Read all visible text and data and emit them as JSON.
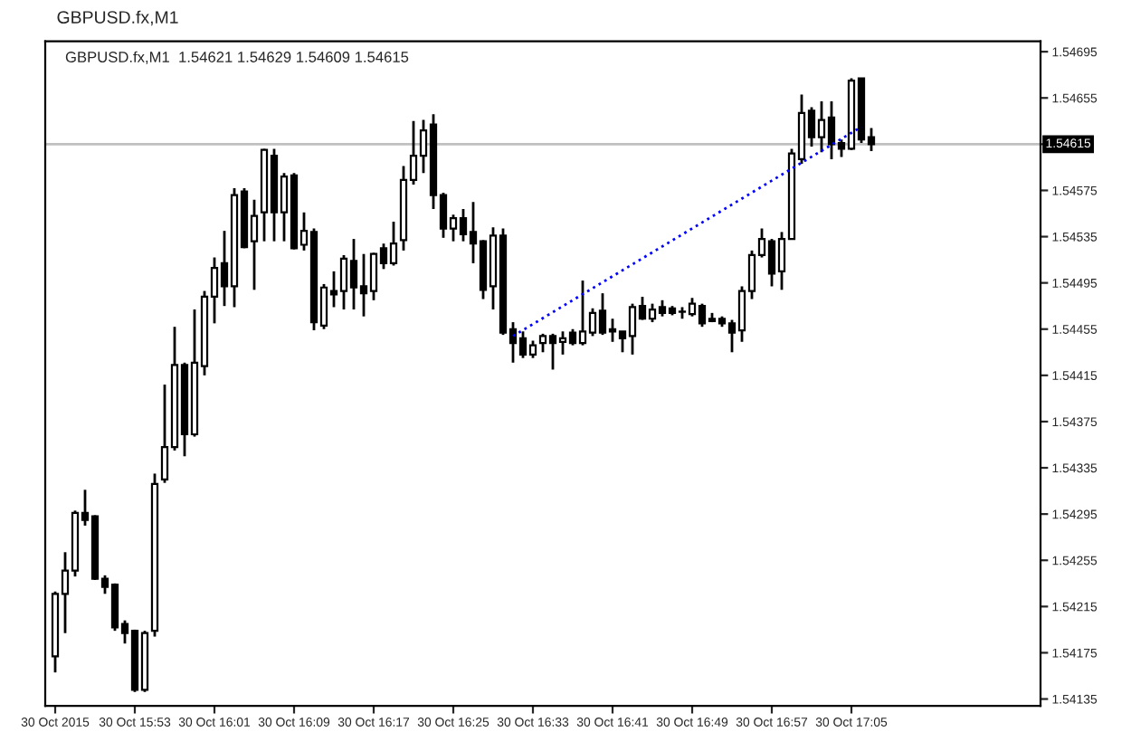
{
  "chart_data": {
    "type": "candlestick",
    "title": "GBPUSD.fx,M1",
    "subtitle": "GBPUSD.fx,M1  1.54621 1.54629 1.54609 1.54615",
    "x": [
      "2015-10-30T15:45",
      "2015-10-30T15:46",
      "2015-10-30T15:47",
      "2015-10-30T15:48",
      "2015-10-30T15:49",
      "2015-10-30T15:50",
      "2015-10-30T15:51",
      "2015-10-30T15:52",
      "2015-10-30T15:53",
      "2015-10-30T15:54",
      "2015-10-30T15:55",
      "2015-10-30T15:56",
      "2015-10-30T15:57",
      "2015-10-30T15:58",
      "2015-10-30T15:59",
      "2015-10-30T16:00",
      "2015-10-30T16:01",
      "2015-10-30T16:02",
      "2015-10-30T16:03",
      "2015-10-30T16:04",
      "2015-10-30T16:05",
      "2015-10-30T16:06",
      "2015-10-30T16:07",
      "2015-10-30T16:08",
      "2015-10-30T16:09",
      "2015-10-30T16:10",
      "2015-10-30T16:11",
      "2015-10-30T16:12",
      "2015-10-30T16:13",
      "2015-10-30T16:14",
      "2015-10-30T16:15",
      "2015-10-30T16:16",
      "2015-10-30T16:17",
      "2015-10-30T16:18",
      "2015-10-30T16:19",
      "2015-10-30T16:20",
      "2015-10-30T16:21",
      "2015-10-30T16:22",
      "2015-10-30T16:23",
      "2015-10-30T16:24",
      "2015-10-30T16:25",
      "2015-10-30T16:26",
      "2015-10-30T16:27",
      "2015-10-30T16:28",
      "2015-10-30T16:29",
      "2015-10-30T16:30",
      "2015-10-30T16:31",
      "2015-10-30T16:32",
      "2015-10-30T16:33",
      "2015-10-30T16:34",
      "2015-10-30T16:35",
      "2015-10-30T16:36",
      "2015-10-30T16:37",
      "2015-10-30T16:38",
      "2015-10-30T16:39",
      "2015-10-30T16:40",
      "2015-10-30T16:41",
      "2015-10-30T16:42",
      "2015-10-30T16:43",
      "2015-10-30T16:44",
      "2015-10-30T16:45",
      "2015-10-30T16:46",
      "2015-10-30T16:47",
      "2015-10-30T16:48",
      "2015-10-30T16:49",
      "2015-10-30T16:50",
      "2015-10-30T16:51",
      "2015-10-30T16:52",
      "2015-10-30T16:53",
      "2015-10-30T16:54",
      "2015-10-30T16:55",
      "2015-10-30T16:56",
      "2015-10-30T16:57",
      "2015-10-30T16:58",
      "2015-10-30T16:59",
      "2015-10-30T17:00",
      "2015-10-30T17:01",
      "2015-10-30T17:02",
      "2015-10-30T17:03",
      "2015-10-30T17:04",
      "2015-10-30T17:05",
      "2015-10-30T17:06",
      "2015-10-30T17:07"
    ],
    "ohlc": [
      [
        1.54172,
        1.54228,
        1.54158,
        1.54226
      ],
      [
        1.54226,
        1.54262,
        1.54192,
        1.54246
      ],
      [
        1.54246,
        1.54298,
        1.54241,
        1.54296
      ],
      [
        1.54296,
        1.54316,
        1.54285,
        1.5429
      ],
      [
        1.54293,
        1.54294,
        1.54238,
        1.54239
      ],
      [
        1.54239,
        1.54242,
        1.54226,
        1.54232
      ],
      [
        1.54234,
        1.54235,
        1.54194,
        1.54197
      ],
      [
        1.542,
        1.54203,
        1.54183,
        1.54192
      ],
      [
        1.54194,
        1.54195,
        1.54141,
        1.54143
      ],
      [
        1.54143,
        1.54194,
        1.54141,
        1.54192
      ],
      [
        1.54194,
        1.5433,
        1.54189,
        1.54321
      ],
      [
        1.54325,
        1.54407,
        1.54322,
        1.54353
      ],
      [
        1.54353,
        1.54457,
        1.5435,
        1.54424
      ],
      [
        1.54424,
        1.54426,
        1.54345,
        1.54364
      ],
      [
        1.54364,
        1.54472,
        1.54362,
        1.54426
      ],
      [
        1.54423,
        1.54488,
        1.54415,
        1.54483
      ],
      [
        1.54483,
        1.54517,
        1.5446,
        1.54508
      ],
      [
        1.54512,
        1.5454,
        1.54475,
        1.54492
      ],
      [
        1.54492,
        1.54577,
        1.54474,
        1.54571
      ],
      [
        1.54574,
        1.54577,
        1.54525,
        1.54526
      ],
      [
        1.54531,
        1.54567,
        1.54489,
        1.54553
      ],
      [
        1.54556,
        1.54611,
        1.54531,
        1.5461
      ],
      [
        1.54605,
        1.54611,
        1.54531,
        1.54556
      ],
      [
        1.54556,
        1.5459,
        1.54531,
        1.54587
      ],
      [
        1.54588,
        1.5459,
        1.54524,
        1.54525
      ],
      [
        1.54528,
        1.54556,
        1.54523,
        1.5454
      ],
      [
        1.54539,
        1.54542,
        1.54454,
        1.54461
      ],
      [
        1.54458,
        1.54494,
        1.54455,
        1.54491
      ],
      [
        1.54488,
        1.54505,
        1.54474,
        1.54485
      ],
      [
        1.54488,
        1.54519,
        1.54472,
        1.54516
      ],
      [
        1.54514,
        1.54533,
        1.54472,
        1.54491
      ],
      [
        1.54492,
        1.5452,
        1.54466,
        1.54486
      ],
      [
        1.54488,
        1.54521,
        1.5448,
        1.5452
      ],
      [
        1.54525,
        1.54529,
        1.54507,
        1.54512
      ],
      [
        1.54512,
        1.54548,
        1.5451,
        1.54529
      ],
      [
        1.54532,
        1.54596,
        1.54523,
        1.54584
      ],
      [
        1.54584,
        1.54635,
        1.5458,
        1.54605
      ],
      [
        1.54605,
        1.54636,
        1.5459,
        1.54627
      ],
      [
        1.54632,
        1.54641,
        1.54559,
        1.54571
      ],
      [
        1.54571,
        1.54573,
        1.54534,
        1.54542
      ],
      [
        1.54542,
        1.54554,
        1.54531,
        1.54551
      ],
      [
        1.54551,
        1.54559,
        1.54531,
        1.54537
      ],
      [
        1.54539,
        1.54565,
        1.54512,
        1.54529
      ],
      [
        1.54531,
        1.54532,
        1.54481,
        1.54489
      ],
      [
        1.54492,
        1.54543,
        1.54472,
        1.54536
      ],
      [
        1.54536,
        1.54542,
        1.5445,
        1.54452
      ],
      [
        1.54455,
        1.54461,
        1.54426,
        1.54443
      ],
      [
        1.54447,
        1.54453,
        1.5443,
        1.54433
      ],
      [
        1.54433,
        1.54445,
        1.5443,
        1.54441
      ],
      [
        1.54443,
        1.54451,
        1.54435,
        1.54449
      ],
      [
        1.54449,
        1.54451,
        1.5442,
        1.54443
      ],
      [
        1.54444,
        1.54453,
        1.54433,
        1.54447
      ],
      [
        1.54452,
        1.54455,
        1.54441,
        1.54443
      ],
      [
        1.54443,
        1.54497,
        1.54441,
        1.54453
      ],
      [
        1.54452,
        1.54473,
        1.54449,
        1.54469
      ],
      [
        1.54471,
        1.54486,
        1.5445,
        1.54452
      ],
      [
        1.54455,
        1.54464,
        1.54444,
        1.54453
      ],
      [
        1.54453,
        1.54453,
        1.54435,
        1.54447
      ],
      [
        1.54449,
        1.54477,
        1.54433,
        1.54474
      ],
      [
        1.54475,
        1.54483,
        1.54463,
        1.54464
      ],
      [
        1.54464,
        1.54477,
        1.54461,
        1.54472
      ],
      [
        1.54474,
        1.5448,
        1.54466,
        1.54469
      ],
      [
        1.54473,
        1.54475,
        1.54467,
        1.54469
      ],
      [
        1.5447,
        1.54474,
        1.54464,
        1.5447
      ],
      [
        1.54468,
        1.54482,
        1.54466,
        1.54477
      ],
      [
        1.54475,
        1.54477,
        1.54457,
        1.5446
      ],
      [
        1.54464,
        1.54469,
        1.54461,
        1.54462
      ],
      [
        1.54464,
        1.54466,
        1.54457,
        1.5446
      ],
      [
        1.5446,
        1.54463,
        1.54435,
        1.54452
      ],
      [
        1.54454,
        1.54492,
        1.54444,
        1.54488
      ],
      [
        1.54488,
        1.54523,
        1.54481,
        1.54519
      ],
      [
        1.54519,
        1.54542,
        1.54517,
        1.54533
      ],
      [
        1.54531,
        1.54533,
        1.54492,
        1.54503
      ],
      [
        1.54505,
        1.54539,
        1.54489,
        1.54533
      ],
      [
        1.54533,
        1.54611,
        1.54533,
        1.54607
      ],
      [
        1.54602,
        1.54658,
        1.54598,
        1.54642
      ],
      [
        1.54644,
        1.54647,
        1.54613,
        1.54621
      ],
      [
        1.54621,
        1.54652,
        1.54608,
        1.54636
      ],
      [
        1.54638,
        1.54652,
        1.54602,
        1.54615
      ],
      [
        1.54616,
        1.54619,
        1.54604,
        1.54611
      ],
      [
        1.54611,
        1.54672,
        1.5461,
        1.5467
      ],
      [
        1.54672,
        1.54672,
        1.54616,
        1.54619
      ],
      [
        1.54621,
        1.54629,
        1.54609,
        1.54615
      ]
    ],
    "series": [
      {
        "type": "line",
        "x": [
          "2015-10-30T16:31",
          "2015-10-30T17:06"
        ],
        "values": [
          1.54449,
          1.5463
        ],
        "color": "#0000ff",
        "line_style": "dotted"
      }
    ],
    "ref_lines": [
      {
        "axis": "y",
        "value": 1.54615,
        "label": "1.54615",
        "color": "#c0c0c0"
      }
    ],
    "xlim": [
      "2015-10-30T15:44",
      "2015-10-30T17:24"
    ],
    "xticks": [
      {
        "value": "2015-10-30T15:45",
        "label": "30 Oct 2015"
      },
      {
        "value": "2015-10-30T15:53",
        "label": "30 Oct 15:53"
      },
      {
        "value": "2015-10-30T16:01",
        "label": "30 Oct 16:01"
      },
      {
        "value": "2015-10-30T16:09",
        "label": "30 Oct 16:09"
      },
      {
        "value": "2015-10-30T16:17",
        "label": "30 Oct 16:17"
      },
      {
        "value": "2015-10-30T16:25",
        "label": "30 Oct 16:25"
      },
      {
        "value": "2015-10-30T16:33",
        "label": "30 Oct 16:33"
      },
      {
        "value": "2015-10-30T16:41",
        "label": "30 Oct 16:41"
      },
      {
        "value": "2015-10-30T16:49",
        "label": "30 Oct 16:49"
      },
      {
        "value": "2015-10-30T16:57",
        "label": "30 Oct 16:57"
      },
      {
        "value": "2015-10-30T17:05",
        "label": "30 Oct 17:05"
      }
    ],
    "ylim": [
      1.54129,
      1.54704
    ],
    "yticks": [
      {
        "value": 1.54695,
        "label": "1.54695"
      },
      {
        "value": 1.54655,
        "label": "1.54655"
      },
      {
        "value": 1.54615,
        "label": null
      },
      {
        "value": 1.54575,
        "label": "1.54575"
      },
      {
        "value": 1.54535,
        "label": "1.54535"
      },
      {
        "value": 1.54495,
        "label": "1.54495"
      },
      {
        "value": 1.54455,
        "label": "1.54455"
      },
      {
        "value": 1.54415,
        "label": "1.54415"
      },
      {
        "value": 1.54375,
        "label": "1.54375"
      },
      {
        "value": 1.54335,
        "label": "1.54335"
      },
      {
        "value": 1.54295,
        "label": "1.54295"
      },
      {
        "value": 1.54255,
        "label": "1.54255"
      },
      {
        "value": 1.54215,
        "label": "1.54215"
      },
      {
        "value": 1.54175,
        "label": "1.54175"
      },
      {
        "value": 1.54135,
        "label": "1.54135"
      }
    ],
    "grid": false,
    "legend": false
  }
}
